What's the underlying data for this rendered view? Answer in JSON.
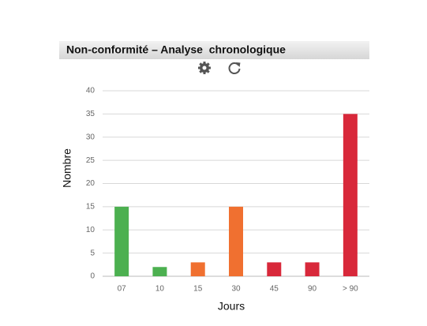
{
  "chart_data": {
    "type": "bar",
    "title": "Non-conformité – Analyse  chronologique",
    "categories": [
      "07",
      "10",
      "15",
      "30",
      "45",
      "90",
      "> 90"
    ],
    "values": [
      15,
      2,
      3,
      15,
      3,
      3,
      35
    ],
    "colors": [
      "#4cb050",
      "#4cb050",
      "#f07030",
      "#f07030",
      "#d8283a",
      "#d8283a",
      "#d8283a"
    ],
    "x_label": "Jours",
    "y_label": "Nombre",
    "ylim": [
      0,
      40
    ],
    "yticks": [
      0,
      5,
      10,
      15,
      20,
      25,
      30,
      35,
      40
    ],
    "grid": true
  }
}
